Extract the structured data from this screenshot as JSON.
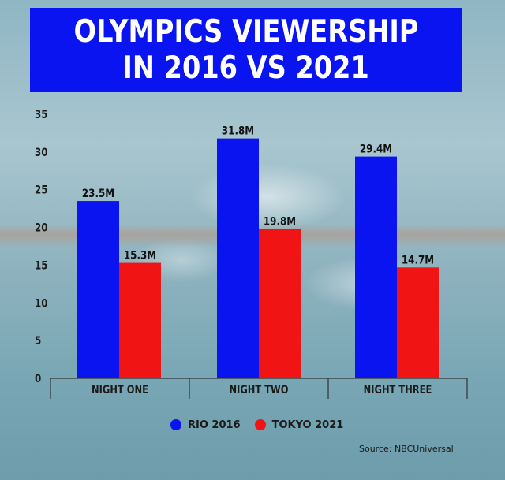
{
  "title_lines": [
    "OLYMPICS VIEWERSHIP",
    "IN 2016 VS 2021"
  ],
  "source": "Source: NBCUniversal",
  "colors": {
    "rio": "#0a14f0",
    "tokyo": "#f01414"
  },
  "chart_data": {
    "type": "bar",
    "title": "OLYMPICS VIEWERSHIP IN 2016 VS 2021",
    "categories": [
      "NIGHT ONE",
      "NIGHT TWO",
      "NIGHT THREE"
    ],
    "series": [
      {
        "name": "RIO 2016",
        "values": [
          23.5,
          31.8,
          29.4
        ],
        "labels": [
          "23.5M",
          "31.8M",
          "29.4M"
        ]
      },
      {
        "name": "TOKYO 2021",
        "values": [
          15.3,
          19.8,
          14.7
        ],
        "labels": [
          "15.3M",
          "19.8M",
          "14.7M"
        ]
      }
    ],
    "yticks": [
      "0",
      "5",
      "10",
      "15",
      "20",
      "25",
      "30",
      "35"
    ],
    "ylim": [
      0,
      35
    ],
    "xlabel": "",
    "ylabel": "",
    "grid": false,
    "legend_position": "bottom-center"
  }
}
